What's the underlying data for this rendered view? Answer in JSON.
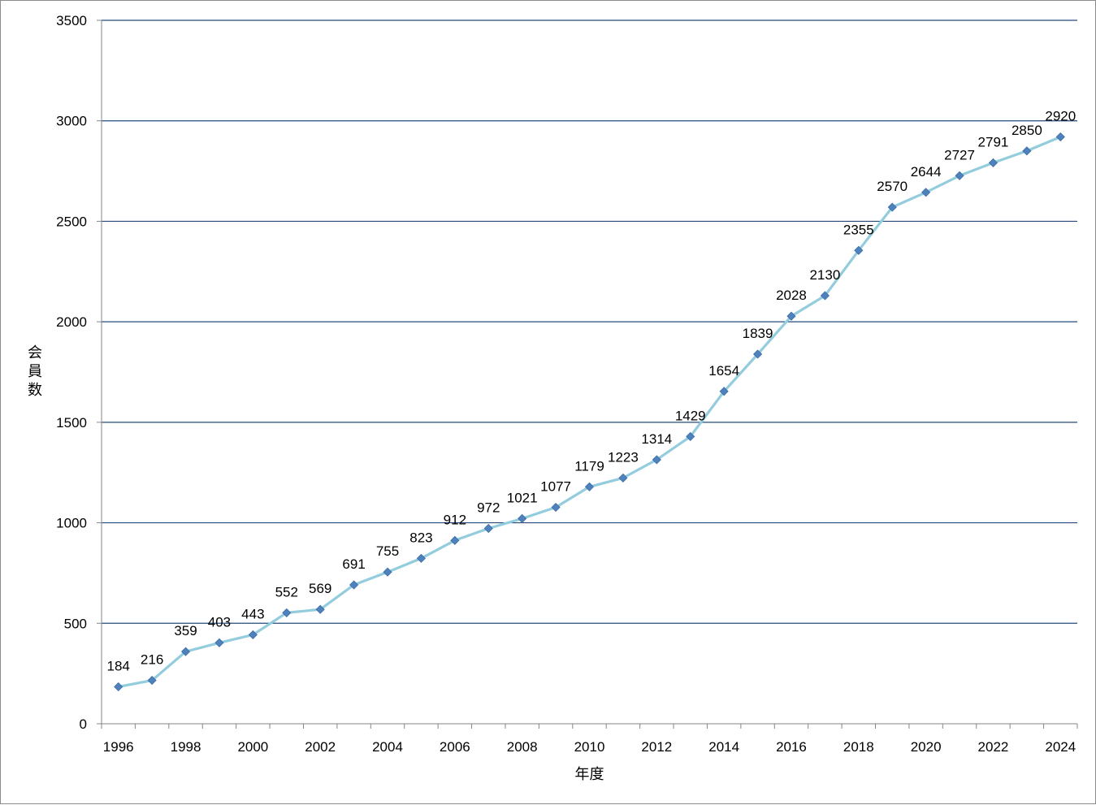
{
  "chart_data": {
    "type": "line",
    "title": "",
    "xlabel": "年度",
    "ylabel": "会員数",
    "x": [
      1996,
      1997,
      1998,
      1999,
      2000,
      2001,
      2002,
      2003,
      2004,
      2005,
      2006,
      2007,
      2008,
      2009,
      2010,
      2011,
      2012,
      2013,
      2014,
      2015,
      2016,
      2017,
      2018,
      2019,
      2020,
      2021,
      2022,
      2023,
      2024
    ],
    "x_tick_labels": [
      "1996",
      "1998",
      "2000",
      "2002",
      "2004",
      "2006",
      "2008",
      "2010",
      "2012",
      "2014",
      "2016",
      "2018",
      "2020",
      "2022",
      "2024"
    ],
    "y_tick_labels": [
      "0",
      "500",
      "1000",
      "1500",
      "2000",
      "2500",
      "3000",
      "3500"
    ],
    "series": [
      {
        "values": [
          184,
          216,
          359,
          403,
          443,
          552,
          569,
          691,
          755,
          823,
          912,
          972,
          1021,
          1077,
          1179,
          1223,
          1314,
          1429,
          1654,
          1839,
          2028,
          2130,
          2355,
          2570,
          2644,
          2727,
          2791,
          2850,
          2920
        ]
      }
    ],
    "ylim": [
      0,
      3500
    ],
    "ytick_step": 500,
    "grid": true,
    "legend": "none",
    "colors": {
      "line": "#93CDDD",
      "marker": "#4F81BD",
      "gridline": "#254B7A",
      "axis": "#868686"
    }
  }
}
